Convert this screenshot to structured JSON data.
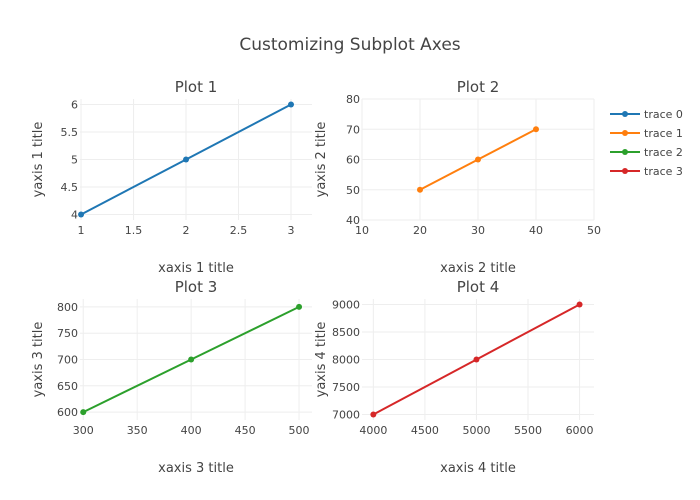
{
  "title": "Customizing Subplot Axes",
  "chart_data": {
    "type": "line",
    "title": "Customizing Subplot Axes",
    "legend_position": "right",
    "legend": [
      {
        "name": "trace 0",
        "color": "#1f77b4"
      },
      {
        "name": "trace 1",
        "color": "#ff7f0e"
      },
      {
        "name": "trace 2",
        "color": "#2ca02c"
      },
      {
        "name": "trace 3",
        "color": "#d62728"
      }
    ],
    "subplots": [
      {
        "title": "Plot 1",
        "xlabel": "xaxis 1 title",
        "ylabel": "yaxis 1 title",
        "xlim": [
          0.99,
          3.2
        ],
        "ylim": [
          3.9,
          6.1
        ],
        "xticks": [
          1,
          1.5,
          2,
          2.5,
          3
        ],
        "xtick_labels": [
          "1",
          "1.5",
          "2",
          "2.5",
          "3"
        ],
        "yticks": [
          4,
          4.5,
          5,
          5.5,
          6
        ],
        "ytick_labels": [
          "4",
          "4.5",
          "5",
          "5.5",
          "6"
        ],
        "grid": true,
        "series": [
          {
            "name": "trace 0",
            "color": "#1f77b4",
            "x": [
              1,
              2,
              3
            ],
            "y": [
              4,
              5,
              6
            ]
          }
        ]
      },
      {
        "title": "Plot 2",
        "xlabel": "xaxis 2 title",
        "ylabel": "yaxis 2 title",
        "xlim": [
          10,
          50
        ],
        "ylim": [
          40,
          80
        ],
        "xticks": [
          10,
          20,
          30,
          40,
          50
        ],
        "xtick_labels": [
          "10",
          "20",
          "30",
          "40",
          "50"
        ],
        "yticks": [
          40,
          50,
          60,
          70,
          80
        ],
        "ytick_labels": [
          "40",
          "50",
          "60",
          "70",
          "80"
        ],
        "grid": true,
        "series": [
          {
            "name": "trace 1",
            "color": "#ff7f0e",
            "x": [
              20,
              30,
              40
            ],
            "y": [
              50,
              60,
              70
            ]
          }
        ]
      },
      {
        "title": "Plot 3",
        "xlabel": "xaxis 3 title",
        "ylabel": "yaxis 3 title",
        "xlim": [
          297,
          512
        ],
        "ylim": [
          585,
          815
        ],
        "xticks": [
          300,
          350,
          400,
          450,
          500
        ],
        "xtick_labels": [
          "300",
          "350",
          "400",
          "450",
          "500"
        ],
        "yticks": [
          600,
          650,
          700,
          750,
          800
        ],
        "ytick_labels": [
          "600",
          "650",
          "700",
          "750",
          "800"
        ],
        "grid": true,
        "series": [
          {
            "name": "trace 2",
            "color": "#2ca02c",
            "x": [
              300,
              400,
              500
            ],
            "y": [
              600,
              700,
              800
            ]
          }
        ]
      },
      {
        "title": "Plot 4",
        "xlabel": "xaxis 4 title",
        "ylabel": "yaxis 4 title",
        "xlim": [
          3890,
          6140
        ],
        "ylim": [
          6900,
          9100
        ],
        "xticks": [
          4000,
          4500,
          5000,
          5500,
          6000
        ],
        "xtick_labels": [
          "4000",
          "4500",
          "5000",
          "5500",
          "6000"
        ],
        "yticks": [
          7000,
          7500,
          8000,
          8500,
          9000
        ],
        "ytick_labels": [
          "7000",
          "7500",
          "8000",
          "8500",
          "9000"
        ],
        "grid": true,
        "series": [
          {
            "name": "trace 3",
            "color": "#d62728",
            "x": [
              4000,
              5000,
              6000
            ],
            "y": [
              7000,
              8000,
              9000
            ]
          }
        ]
      }
    ]
  }
}
